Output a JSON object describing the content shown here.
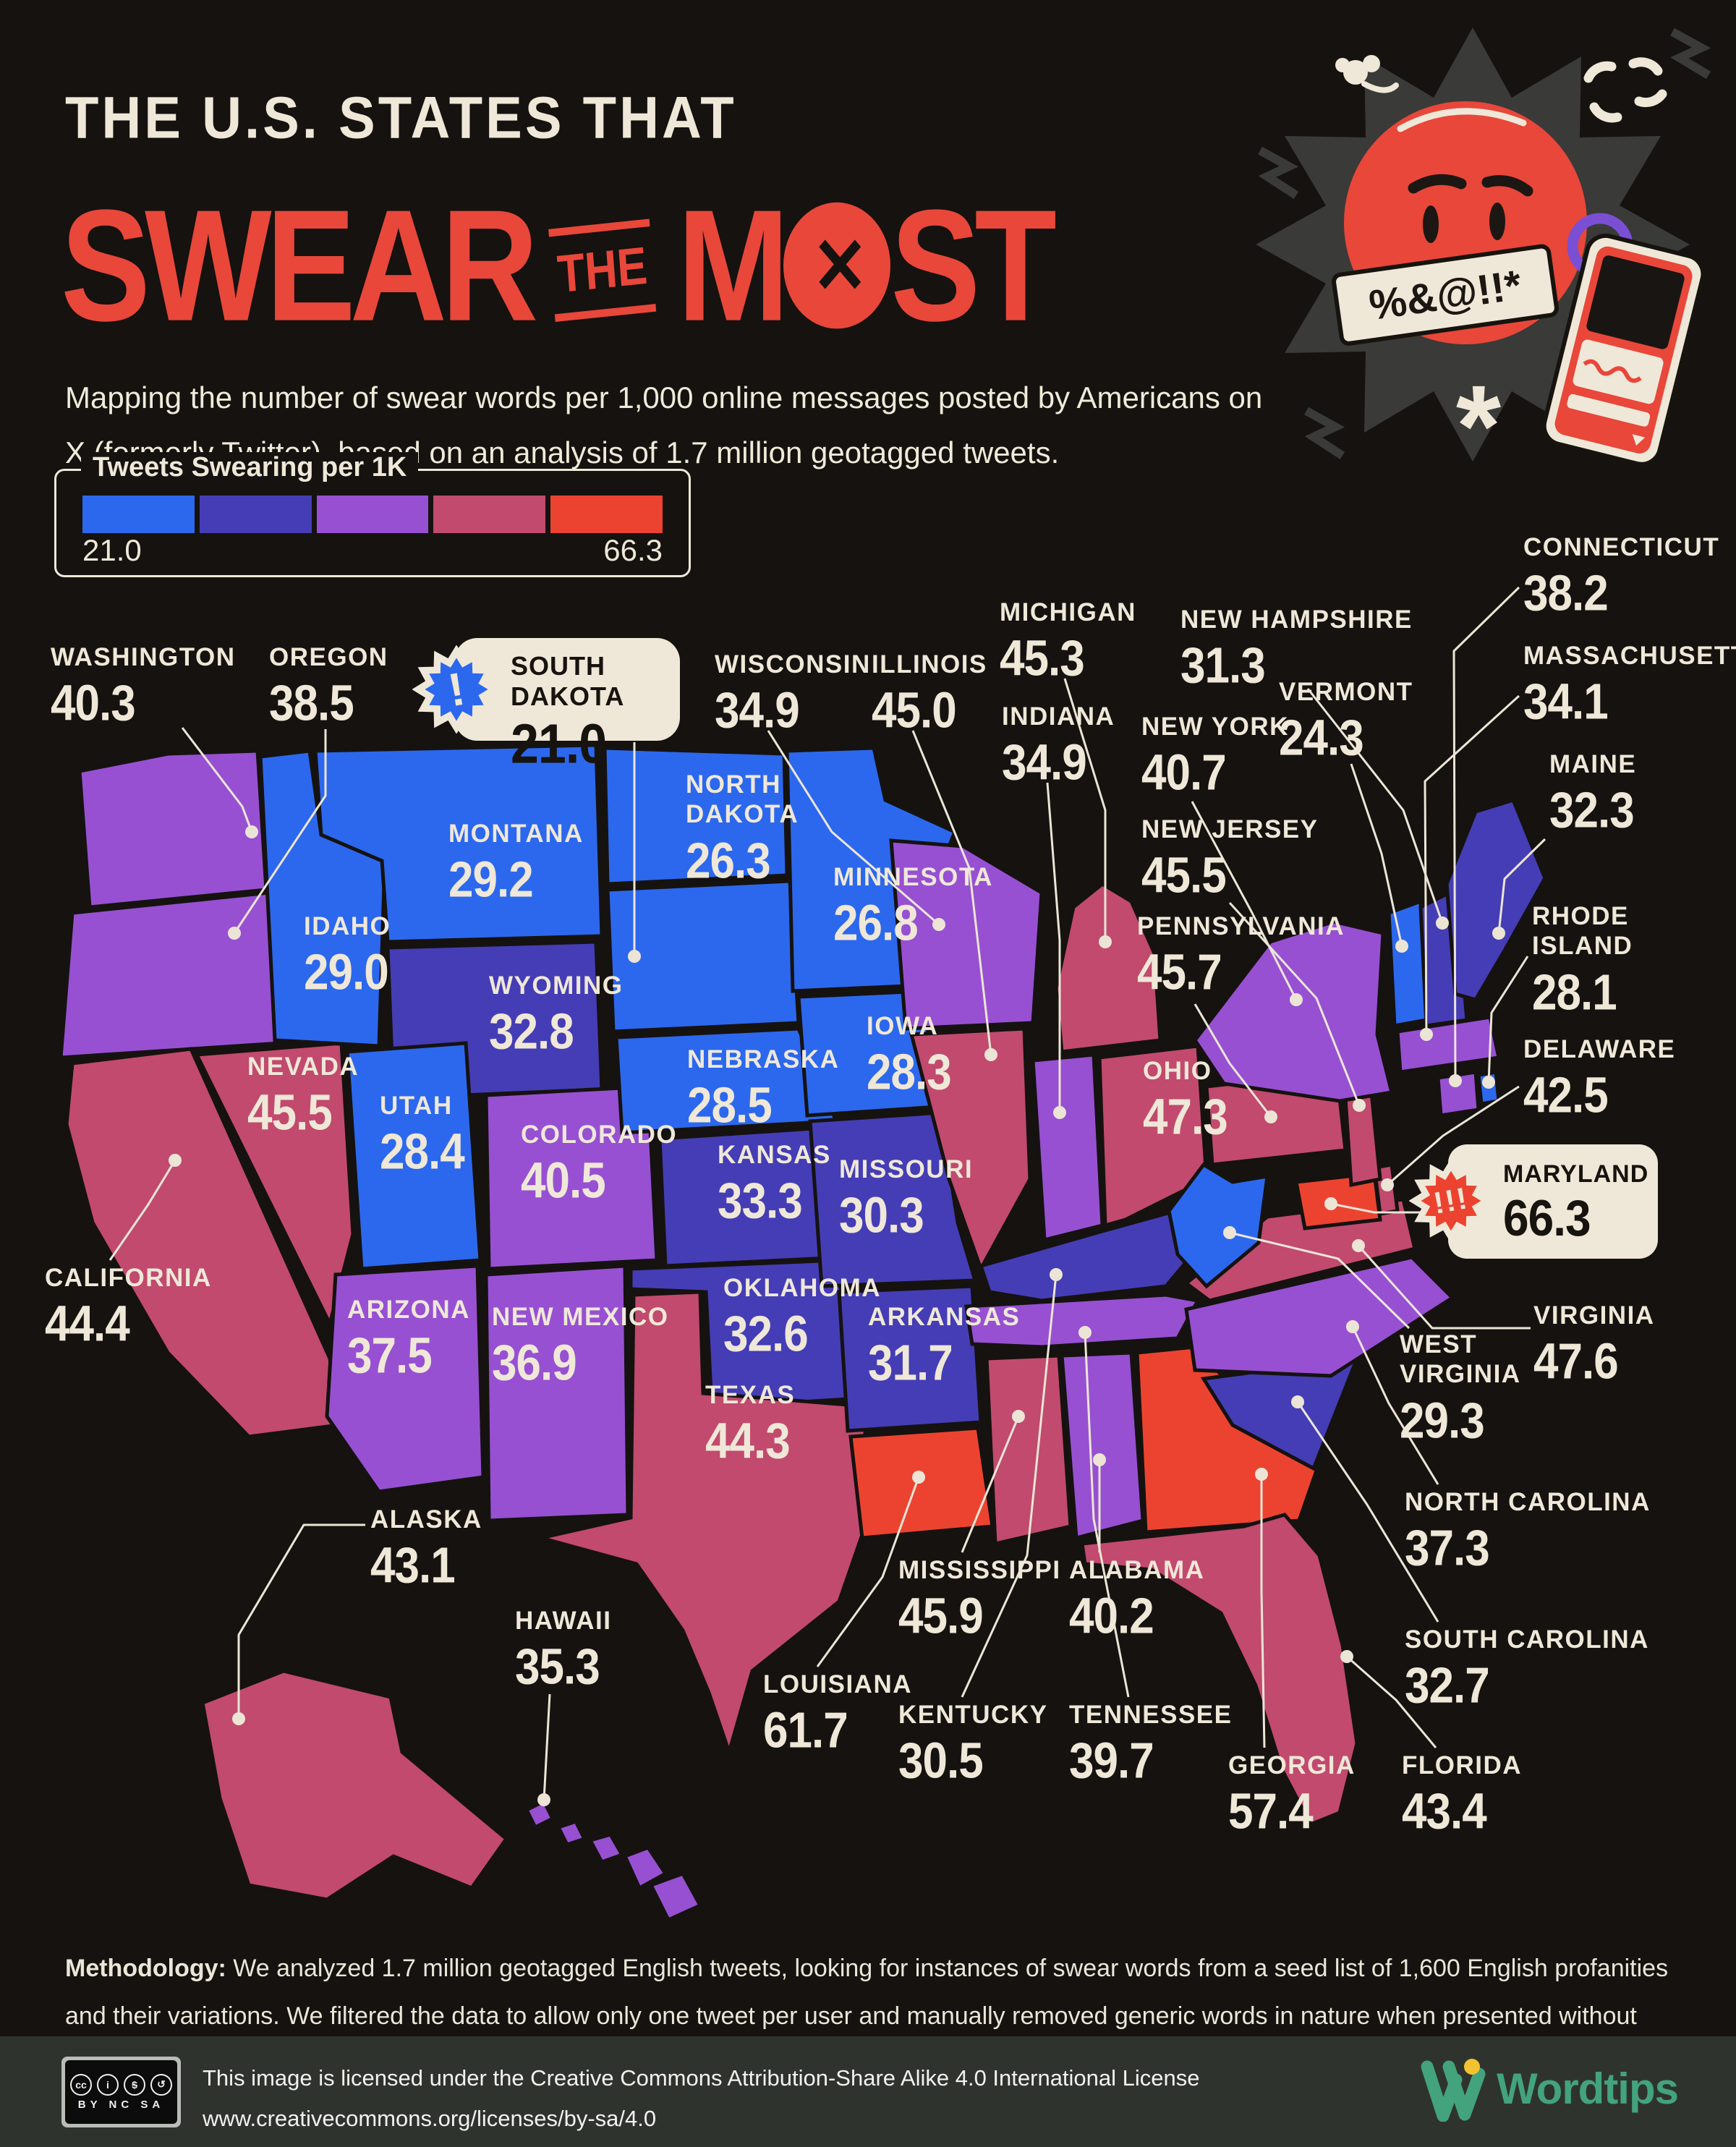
{
  "page": {
    "bg": "#151210",
    "cream": "#efe8d8",
    "red": "#e8473a",
    "ink": "#17130e",
    "footer_bg": "#2f332e",
    "brand_green": "#43a37d",
    "accent_yellow": "#f2c230",
    "spring_purple": "#7a4fd4",
    "burst_gray": "#3a3a38"
  },
  "header": {
    "kicker": "THE U.S. STATES THAT",
    "word1": "SWEAR",
    "word2": "THE",
    "word3a": "M",
    "word3b": "ST",
    "censor_x": "✕",
    "speech_text": "%&@!!*",
    "asterisk": "*",
    "subtitle": "Mapping the number of swear words per 1,000 online messages posted by Americans on X (formerly Twitter), based on an analysis of 1.7 million geotagged tweets."
  },
  "legend": {
    "title": "Tweets Swearing per 1K",
    "min_label": "21.0",
    "max_label": "66.3",
    "colors": [
      "#2c68ee",
      "#453db5",
      "#9750d2",
      "#c14a6e",
      "#ec4330"
    ],
    "thresholds": [
      30,
      34,
      42,
      50
    ]
  },
  "callouts": {
    "low": {
      "name": "SOUTH DAKOTA",
      "value": "21.0",
      "badge": "!",
      "badge_color": "#2c68ee"
    },
    "high": {
      "name": "MARYLAND",
      "value": "66.3",
      "badge": "!!!",
      "badge_color": "#ec4330"
    }
  },
  "states": [
    {
      "code": "WA",
      "name": "WASHINGTON",
      "value": "40.3"
    },
    {
      "code": "OR",
      "name": "OREGON",
      "value": "38.5"
    },
    {
      "code": "CA",
      "name": "CALIFORNIA",
      "value": "44.4"
    },
    {
      "code": "NV",
      "name": "NEVADA",
      "value": "45.5"
    },
    {
      "code": "ID",
      "name": "IDAHO",
      "value": "29.0"
    },
    {
      "code": "MT",
      "name": "MONTANA",
      "value": "29.2"
    },
    {
      "code": "WY",
      "name": "WYOMING",
      "value": "32.8"
    },
    {
      "code": "UT",
      "name": "UTAH",
      "value": "28.4"
    },
    {
      "code": "CO",
      "name": "COLORADO",
      "value": "40.5"
    },
    {
      "code": "AZ",
      "name": "ARIZONA",
      "value": "37.5"
    },
    {
      "code": "NM",
      "name": "NEW MEXICO",
      "value": "36.9"
    },
    {
      "code": "ND",
      "name": "NORTH DAKOTA",
      "value": "26.3"
    },
    {
      "code": "SD",
      "name": "SOUTH DAKOTA",
      "value": "21.0"
    },
    {
      "code": "NE",
      "name": "NEBRASKA",
      "value": "28.5"
    },
    {
      "code": "KS",
      "name": "KANSAS",
      "value": "33.3"
    },
    {
      "code": "OK",
      "name": "OKLAHOMA",
      "value": "32.6"
    },
    {
      "code": "TX",
      "name": "TEXAS",
      "value": "44.3"
    },
    {
      "code": "MN",
      "name": "MINNESOTA",
      "value": "26.8"
    },
    {
      "code": "IA",
      "name": "IOWA",
      "value": "28.3"
    },
    {
      "code": "MO",
      "name": "MISSOURI",
      "value": "30.3"
    },
    {
      "code": "AR",
      "name": "ARKANSAS",
      "value": "31.7"
    },
    {
      "code": "LA",
      "name": "LOUISIANA",
      "value": "61.7"
    },
    {
      "code": "WI",
      "name": "WISCONSIN",
      "value": "34.9"
    },
    {
      "code": "IL",
      "name": "ILLINOIS",
      "value": "45.0"
    },
    {
      "code": "IN",
      "name": "INDIANA",
      "value": "34.9"
    },
    {
      "code": "MI",
      "name": "MICHIGAN",
      "value": "45.3"
    },
    {
      "code": "OH",
      "name": "OHIO",
      "value": "47.3"
    },
    {
      "code": "KY",
      "name": "KENTUCKY",
      "value": "30.5"
    },
    {
      "code": "TN",
      "name": "TENNESSEE",
      "value": "39.7"
    },
    {
      "code": "MS",
      "name": "MISSISSIPPI",
      "value": "45.9"
    },
    {
      "code": "AL",
      "name": "ALABAMA",
      "value": "40.2"
    },
    {
      "code": "GA",
      "name": "GEORGIA",
      "value": "57.4"
    },
    {
      "code": "FL",
      "name": "FLORIDA",
      "value": "43.4"
    },
    {
      "code": "SC",
      "name": "SOUTH CAROLINA",
      "value": "32.7"
    },
    {
      "code": "NC",
      "name": "NORTH CAROLINA",
      "value": "37.3"
    },
    {
      "code": "VA",
      "name": "VIRGINIA",
      "value": "47.6"
    },
    {
      "code": "WV",
      "name": "WEST VIRGINIA",
      "value": "29.3"
    },
    {
      "code": "MD",
      "name": "MARYLAND",
      "value": "66.3"
    },
    {
      "code": "DE",
      "name": "DELAWARE",
      "value": "42.5"
    },
    {
      "code": "NJ",
      "name": "NEW JERSEY",
      "value": "45.5"
    },
    {
      "code": "PA",
      "name": "PENNSYLVANIA",
      "value": "45.7"
    },
    {
      "code": "NY",
      "name": "NEW YORK",
      "value": "40.7"
    },
    {
      "code": "CT",
      "name": "CONNECTICUT",
      "value": "38.2"
    },
    {
      "code": "RI",
      "name": "RHODE ISLAND",
      "value": "28.1"
    },
    {
      "code": "MA",
      "name": "MASSACHUSETTS",
      "value": "34.1"
    },
    {
      "code": "VT",
      "name": "VERMONT",
      "value": "24.3"
    },
    {
      "code": "NH",
      "name": "NEW HAMPSHIRE",
      "value": "31.3"
    },
    {
      "code": "ME",
      "name": "MAINE",
      "value": "32.3"
    },
    {
      "code": "AK",
      "name": "ALASKA",
      "value": "43.1"
    },
    {
      "code": "HI",
      "name": "HAWAII",
      "value": "35.3"
    }
  ],
  "methodology": {
    "label": "Methodology:",
    "text": " We analyzed 1.7 million geotagged English tweets, looking for instances of swear words from a seed list of 1,600 English profanities and their variations. We filtered the data to allow only one tweet per user and manually removed generic words in nature when presented without context."
  },
  "footer": {
    "cc_labels": "BY NC SA",
    "license_line1": "This image is licensed under the Creative Commons Attribution-Share Alike 4.0 International License",
    "license_line2": "www.creativecommons.org/licenses/by-sa/4.0",
    "brand": "Wordtips"
  },
  "chart_data": {
    "type": "choropleth",
    "region": "United States",
    "metric": "Tweets Swearing per 1K",
    "range": [
      21.0,
      66.3
    ],
    "lowest": {
      "state": "South Dakota",
      "value": 21.0
    },
    "highest": {
      "state": "Maryland",
      "value": 66.3
    },
    "note": "Per-state values are listed in the states[] array of this JSON block."
  }
}
